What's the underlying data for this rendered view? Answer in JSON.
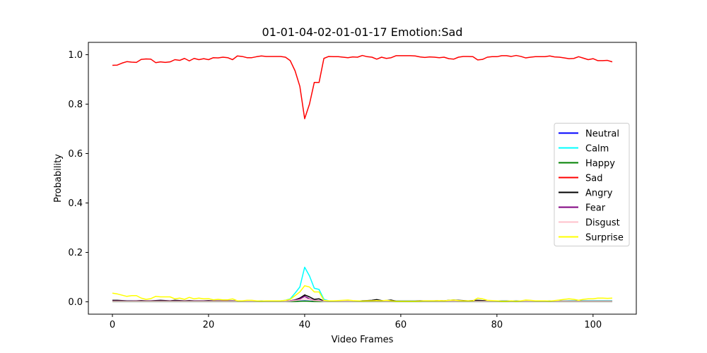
{
  "chart_data": {
    "type": "line",
    "title": "01-01-04-02-01-01-17 Emotion:Sad",
    "xlabel": "Video Frames",
    "ylabel": "Probability",
    "xlim": [
      -5,
      109
    ],
    "ylim": [
      -0.05,
      1.05
    ],
    "xticks": [
      0,
      20,
      40,
      60,
      80,
      100
    ],
    "yticks": [
      0.0,
      0.2,
      0.4,
      0.6,
      0.8,
      1.0
    ],
    "grid": false,
    "legend_position": "center-right",
    "x": {
      "start": 0,
      "end": 104,
      "step": 1
    },
    "series": [
      {
        "name": "Neutral",
        "color": "#0000ff",
        "values": [
          0.001,
          0.001,
          0.001,
          0.001,
          0.001,
          0.001,
          0.001,
          0.001,
          0.001,
          0.001,
          0.001,
          0.001,
          0.001,
          0.001,
          0.001,
          0.001,
          0.001,
          0.001,
          0.001,
          0.001,
          0.001,
          0.001,
          0.001,
          0.001,
          0.001,
          0.001,
          0.001,
          0.001,
          0.001,
          0.001,
          0.001,
          0.001,
          0.001,
          0.001,
          0.001,
          0.001,
          0.001,
          0.001,
          0.002,
          0.003,
          0.004,
          0.003,
          0.002,
          0.002,
          0.001,
          0.001,
          0.001,
          0.001,
          0.001,
          0.001,
          0.001,
          0.001,
          0.001,
          0.001,
          0.001,
          0.001,
          0.001,
          0.001,
          0.001,
          0.001,
          0.001,
          0.001,
          0.001,
          0.001,
          0.001,
          0.001,
          0.001,
          0.001,
          0.001,
          0.001,
          0.001,
          0.001,
          0.001,
          0.001,
          0.001,
          0.001,
          0.001,
          0.001,
          0.001,
          0.001,
          0.001,
          0.001,
          0.001,
          0.001,
          0.001,
          0.001,
          0.001,
          0.001,
          0.001,
          0.001,
          0.001,
          0.001,
          0.001,
          0.001,
          0.001,
          0.001,
          0.001,
          0.001,
          0.001,
          0.001,
          0.001,
          0.001,
          0.001,
          0.001,
          0.001
        ]
      },
      {
        "name": "Calm",
        "color": "#00ffff",
        "values": [
          0.004,
          0.004,
          0.004,
          0.004,
          0.004,
          0.003,
          0.003,
          0.003,
          0.003,
          0.003,
          0.003,
          0.003,
          0.003,
          0.003,
          0.003,
          0.003,
          0.003,
          0.003,
          0.003,
          0.003,
          0.003,
          0.003,
          0.003,
          0.003,
          0.003,
          0.003,
          0.003,
          0.003,
          0.003,
          0.003,
          0.003,
          0.003,
          0.003,
          0.003,
          0.003,
          0.004,
          0.006,
          0.012,
          0.035,
          0.06,
          0.14,
          0.105,
          0.055,
          0.05,
          0.01,
          0.004,
          0.003,
          0.003,
          0.003,
          0.003,
          0.003,
          0.003,
          0.003,
          0.003,
          0.003,
          0.003,
          0.003,
          0.003,
          0.003,
          0.003,
          0.003,
          0.003,
          0.003,
          0.003,
          0.003,
          0.003,
          0.003,
          0.003,
          0.003,
          0.003,
          0.003,
          0.003,
          0.003,
          0.003,
          0.003,
          0.003,
          0.003,
          0.003,
          0.003,
          0.003,
          0.003,
          0.003,
          0.003,
          0.003,
          0.003,
          0.003,
          0.003,
          0.003,
          0.003,
          0.003,
          0.003,
          0.003,
          0.003,
          0.003,
          0.003,
          0.004,
          0.004,
          0.004,
          0.004,
          0.004,
          0.004,
          0.004,
          0.004,
          0.004,
          0.004
        ]
      },
      {
        "name": "Happy",
        "color": "#008000",
        "values": [
          0.001,
          0.001,
          0.001,
          0.001,
          0.001,
          0.001,
          0.001,
          0.001,
          0.001,
          0.001,
          0.001,
          0.001,
          0.001,
          0.001,
          0.001,
          0.001,
          0.001,
          0.001,
          0.001,
          0.001,
          0.001,
          0.001,
          0.001,
          0.001,
          0.001,
          0.001,
          0.001,
          0.001,
          0.001,
          0.001,
          0.001,
          0.001,
          0.001,
          0.001,
          0.001,
          0.001,
          0.001,
          0.001,
          0.001,
          0.002,
          0.003,
          0.002,
          0.001,
          0.001,
          0.001,
          0.001,
          0.001,
          0.001,
          0.001,
          0.001,
          0.001,
          0.001,
          0.001,
          0.001,
          0.001,
          0.001,
          0.001,
          0.001,
          0.001,
          0.001,
          0.001,
          0.001,
          0.001,
          0.001,
          0.001,
          0.001,
          0.001,
          0.001,
          0.001,
          0.001,
          0.001,
          0.001,
          0.001,
          0.001,
          0.001,
          0.001,
          0.001,
          0.001,
          0.001,
          0.001,
          0.001,
          0.001,
          0.001,
          0.001,
          0.001,
          0.001,
          0.001,
          0.001,
          0.001,
          0.001,
          0.001,
          0.001,
          0.001,
          0.001,
          0.001,
          0.001,
          0.001,
          0.001,
          0.001,
          0.001,
          0.001,
          0.001,
          0.001,
          0.001,
          0.001
        ]
      },
      {
        "name": "Sad",
        "color": "#ff0000",
        "values": [
          0.957,
          0.958,
          0.966,
          0.972,
          0.97,
          0.969,
          0.981,
          0.983,
          0.982,
          0.968,
          0.971,
          0.969,
          0.971,
          0.98,
          0.977,
          0.985,
          0.975,
          0.985,
          0.98,
          0.984,
          0.98,
          0.988,
          0.987,
          0.99,
          0.988,
          0.98,
          0.995,
          0.993,
          0.988,
          0.988,
          0.992,
          0.995,
          0.993,
          0.993,
          0.993,
          0.993,
          0.99,
          0.976,
          0.935,
          0.872,
          0.741,
          0.8,
          0.888,
          0.888,
          0.985,
          0.993,
          0.992,
          0.992,
          0.99,
          0.988,
          0.991,
          0.99,
          0.997,
          0.992,
          0.99,
          0.982,
          0.99,
          0.985,
          0.988,
          0.996,
          0.996,
          0.996,
          0.996,
          0.995,
          0.991,
          0.989,
          0.991,
          0.99,
          0.988,
          0.99,
          0.984,
          0.982,
          0.99,
          0.993,
          0.993,
          0.992,
          0.979,
          0.981,
          0.99,
          0.992,
          0.992,
          0.996,
          0.996,
          0.993,
          0.997,
          0.993,
          0.987,
          0.99,
          0.992,
          0.992,
          0.992,
          0.995,
          0.991,
          0.99,
          0.987,
          0.984,
          0.985,
          0.992,
          0.986,
          0.98,
          0.984,
          0.976,
          0.976,
          0.977,
          0.971
        ]
      },
      {
        "name": "Angry",
        "color": "#000000",
        "values": [
          0.006,
          0.006,
          0.005,
          0.004,
          0.004,
          0.004,
          0.005,
          0.004,
          0.004,
          0.005,
          0.006,
          0.005,
          0.004,
          0.006,
          0.005,
          0.004,
          0.005,
          0.004,
          0.004,
          0.004,
          0.005,
          0.004,
          0.004,
          0.004,
          0.004,
          0.004,
          0.003,
          0.003,
          0.003,
          0.003,
          0.003,
          0.003,
          0.003,
          0.003,
          0.003,
          0.003,
          0.003,
          0.004,
          0.008,
          0.015,
          0.028,
          0.02,
          0.01,
          0.012,
          0.003,
          0.003,
          0.003,
          0.003,
          0.003,
          0.003,
          0.003,
          0.003,
          0.004,
          0.005,
          0.006,
          0.009,
          0.005,
          0.005,
          0.007,
          0.003,
          0.003,
          0.003,
          0.003,
          0.003,
          0.004,
          0.004,
          0.004,
          0.004,
          0.005,
          0.004,
          0.006,
          0.007,
          0.006,
          0.005,
          0.004,
          0.005,
          0.006,
          0.005,
          0.004,
          0.003,
          0.003,
          0.003,
          0.003,
          0.003,
          0.003,
          0.003,
          0.003,
          0.003,
          0.003,
          0.003,
          0.003,
          0.003,
          0.003,
          0.003,
          0.003,
          0.003,
          0.003,
          0.003,
          0.003,
          0.003,
          0.003,
          0.003,
          0.003,
          0.003,
          0.003
        ]
      },
      {
        "name": "Fear",
        "color": "#800080",
        "values": [
          0.003,
          0.003,
          0.003,
          0.003,
          0.003,
          0.003,
          0.003,
          0.003,
          0.003,
          0.003,
          0.003,
          0.003,
          0.003,
          0.003,
          0.003,
          0.003,
          0.003,
          0.003,
          0.003,
          0.003,
          0.003,
          0.003,
          0.003,
          0.003,
          0.003,
          0.003,
          0.002,
          0.002,
          0.002,
          0.002,
          0.002,
          0.002,
          0.002,
          0.002,
          0.002,
          0.002,
          0.003,
          0.004,
          0.007,
          0.012,
          0.022,
          0.012,
          0.006,
          0.005,
          0.002,
          0.002,
          0.002,
          0.002,
          0.002,
          0.002,
          0.002,
          0.002,
          0.002,
          0.002,
          0.002,
          0.002,
          0.002,
          0.002,
          0.002,
          0.002,
          0.002,
          0.002,
          0.002,
          0.002,
          0.002,
          0.002,
          0.002,
          0.002,
          0.002,
          0.002,
          0.002,
          0.002,
          0.002,
          0.002,
          0.002,
          0.002,
          0.002,
          0.002,
          0.002,
          0.002,
          0.002,
          0.002,
          0.002,
          0.002,
          0.002,
          0.002,
          0.002,
          0.002,
          0.002,
          0.002,
          0.002,
          0.002,
          0.002,
          0.002,
          0.002,
          0.002,
          0.002,
          0.002,
          0.002,
          0.002,
          0.002,
          0.002,
          0.002,
          0.002,
          0.002
        ]
      },
      {
        "name": "Disgust",
        "color": "#ffc0cb",
        "values": [
          0.002,
          0.002,
          0.002,
          0.002,
          0.002,
          0.002,
          0.002,
          0.002,
          0.002,
          0.002,
          0.002,
          0.002,
          0.002,
          0.002,
          0.002,
          0.002,
          0.002,
          0.002,
          0.002,
          0.002,
          0.002,
          0.002,
          0.002,
          0.002,
          0.002,
          0.002,
          0.002,
          0.002,
          0.002,
          0.002,
          0.002,
          0.002,
          0.002,
          0.002,
          0.002,
          0.002,
          0.002,
          0.003,
          0.005,
          0.008,
          0.012,
          0.01,
          0.005,
          0.004,
          0.002,
          0.002,
          0.002,
          0.002,
          0.002,
          0.002,
          0.002,
          0.002,
          0.002,
          0.002,
          0.002,
          0.002,
          0.002,
          0.002,
          0.002,
          0.002,
          0.002,
          0.002,
          0.002,
          0.002,
          0.002,
          0.002,
          0.002,
          0.002,
          0.002,
          0.002,
          0.002,
          0.002,
          0.002,
          0.002,
          0.002,
          0.002,
          0.002,
          0.002,
          0.002,
          0.002,
          0.002,
          0.002,
          0.002,
          0.002,
          0.002,
          0.002,
          0.002,
          0.002,
          0.002,
          0.002,
          0.002,
          0.002,
          0.002,
          0.002,
          0.002,
          0.002,
          0.002,
          0.002,
          0.002,
          0.002,
          0.002,
          0.002,
          0.002,
          0.002,
          0.002
        ]
      },
      {
        "name": "Surprise",
        "color": "#ffff00",
        "values": [
          0.035,
          0.032,
          0.027,
          0.022,
          0.025,
          0.025,
          0.015,
          0.01,
          0.013,
          0.022,
          0.02,
          0.02,
          0.02,
          0.012,
          0.015,
          0.01,
          0.018,
          0.012,
          0.015,
          0.012,
          0.013,
          0.008,
          0.01,
          0.008,
          0.008,
          0.012,
          0.004,
          0.004,
          0.006,
          0.006,
          0.004,
          0.003,
          0.004,
          0.004,
          0.004,
          0.004,
          0.006,
          0.01,
          0.025,
          0.04,
          0.065,
          0.06,
          0.04,
          0.04,
          0.006,
          0.004,
          0.004,
          0.005,
          0.006,
          0.007,
          0.005,
          0.004,
          0.003,
          0.004,
          0.004,
          0.005,
          0.004,
          0.006,
          0.004,
          0.002,
          0.002,
          0.002,
          0.002,
          0.002,
          0.003,
          0.004,
          0.004,
          0.004,
          0.005,
          0.004,
          0.006,
          0.007,
          0.005,
          0.004,
          0.004,
          0.004,
          0.015,
          0.012,
          0.006,
          0.005,
          0.004,
          0.002,
          0.002,
          0.004,
          0.002,
          0.004,
          0.007,
          0.006,
          0.004,
          0.004,
          0.004,
          0.003,
          0.005,
          0.007,
          0.01,
          0.012,
          0.01,
          0.006,
          0.01,
          0.012,
          0.012,
          0.015,
          0.015,
          0.014,
          0.015
        ]
      }
    ]
  }
}
